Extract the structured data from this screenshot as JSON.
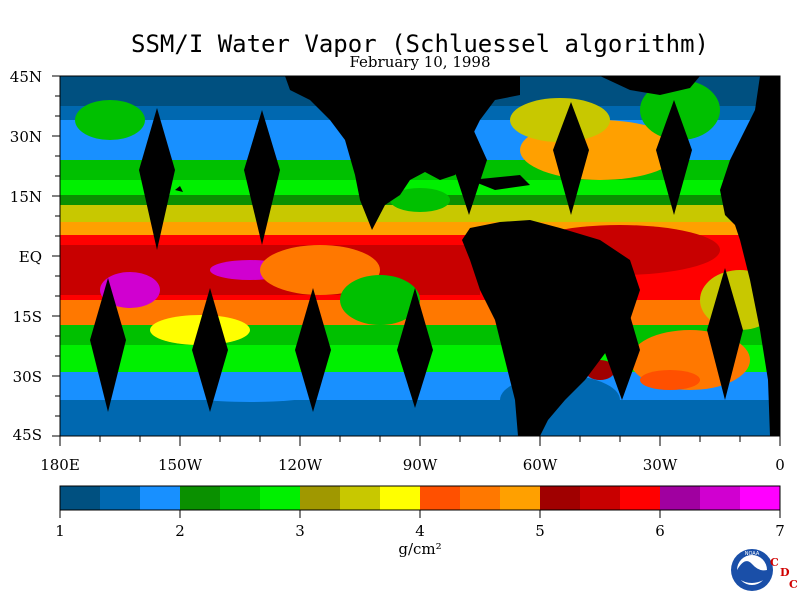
{
  "title": "SSM/I Water Vapor (Schluessel algorithm)",
  "date": "February 10, 1998",
  "lat_labels": [
    "45N",
    "30N",
    "15N",
    "EQ",
    "15S",
    "30S",
    "45S"
  ],
  "lon_labels": [
    "180E",
    "150W",
    "120W",
    "90W",
    "60W",
    "30W",
    "0"
  ],
  "colorbar": {
    "tick_labels": [
      "1",
      "2",
      "3",
      "4",
      "5",
      "6",
      "7"
    ],
    "units": "g/cm²",
    "colors": [
      "#005080",
      "#0068b0",
      "#1890ff",
      "#0a9000",
      "#00c000",
      "#00f000",
      "#a09800",
      "#c8c800",
      "#ffff00",
      "#ff5000",
      "#ff7800",
      "#ffa000",
      "#a00000",
      "#c80000",
      "#ff0000",
      "#a000a0",
      "#d000d0",
      "#ff00ff"
    ]
  },
  "logo": {
    "agency": "NOAA",
    "letters": [
      "C",
      "D",
      "C"
    ]
  }
}
